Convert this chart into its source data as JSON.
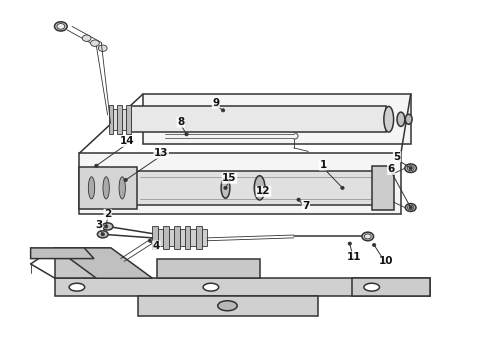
{
  "bg_color": "#ffffff",
  "line_color": "#333333",
  "label_color": "#111111",
  "figure_width": 4.9,
  "figure_height": 3.6,
  "dpi": 100
}
